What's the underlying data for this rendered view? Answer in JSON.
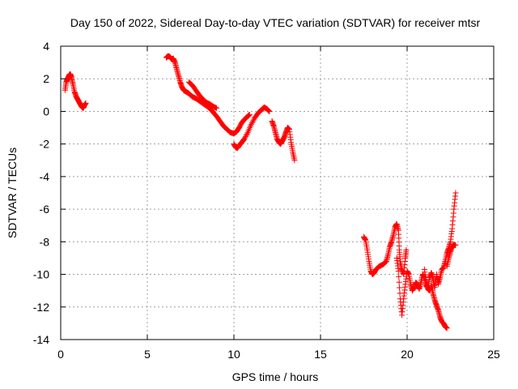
{
  "chart_data": {
    "type": "scatter",
    "title": "Day 150 of 2022, Sidereal Day-to-day VTEC variation (SDTVAR) for receiver mtsr",
    "xlabel": "GPS time / hours",
    "ylabel": "SDTVAR / TECUs",
    "xlim": [
      0,
      25
    ],
    "ylim": [
      -14,
      4
    ],
    "x_ticks": [
      0,
      5,
      10,
      15,
      20,
      25
    ],
    "y_ticks": [
      -14,
      -12,
      -10,
      -8,
      -6,
      -4,
      -2,
      0,
      2,
      4
    ],
    "grid": true,
    "marker": "+",
    "series_color": "#ff0000",
    "series": [
      {
        "name": "mtsr",
        "segments": [
          [
            [
              0.25,
              1.3
            ],
            [
              0.32,
              1.8
            ],
            [
              0.4,
              2.0
            ],
            [
              0.48,
              2.2
            ],
            [
              0.55,
              2.3
            ],
            [
              0.62,
              2.1
            ],
            [
              0.7,
              1.7
            ],
            [
              0.8,
              1.2
            ],
            [
              0.9,
              0.9
            ],
            [
              1.0,
              0.7
            ],
            [
              1.1,
              0.5
            ],
            [
              1.2,
              0.3
            ],
            [
              1.3,
              0.2
            ],
            [
              1.38,
              0.4
            ],
            [
              1.45,
              0.5
            ]
          ],
          [
            [
              6.1,
              3.3
            ],
            [
              6.2,
              3.4
            ],
            [
              6.3,
              3.35
            ],
            [
              6.4,
              3.2
            ],
            [
              6.5,
              3.25
            ],
            [
              6.6,
              3.0
            ],
            [
              6.7,
              2.6
            ],
            [
              6.8,
              2.2
            ],
            [
              6.9,
              1.8
            ],
            [
              7.0,
              1.5
            ],
            [
              7.1,
              1.3
            ],
            [
              7.25,
              1.2
            ],
            [
              7.4,
              1.1
            ],
            [
              7.6,
              0.9
            ],
            [
              7.8,
              0.8
            ],
            [
              8.0,
              0.65
            ],
            [
              8.2,
              0.5
            ],
            [
              8.4,
              0.35
            ],
            [
              8.6,
              0.2
            ],
            [
              8.8,
              -0.05
            ],
            [
              9.0,
              -0.3
            ],
            [
              9.2,
              -0.6
            ],
            [
              9.4,
              -0.9
            ],
            [
              9.6,
              -1.1
            ],
            [
              9.8,
              -1.3
            ],
            [
              10.0,
              -1.35
            ],
            [
              10.15,
              -1.25
            ],
            [
              10.3,
              -1.0
            ],
            [
              10.45,
              -0.7
            ],
            [
              10.6,
              -0.5
            ],
            [
              10.8,
              -0.3
            ],
            [
              10.9,
              -0.2
            ]
          ],
          [
            [
              7.4,
              1.8
            ],
            [
              7.6,
              1.6
            ],
            [
              7.8,
              1.3
            ],
            [
              8.0,
              1.0
            ],
            [
              8.2,
              0.75
            ],
            [
              8.4,
              0.55
            ],
            [
              8.6,
              0.45
            ],
            [
              8.8,
              0.3
            ],
            [
              9.0,
              0.2
            ]
          ],
          [
            [
              10.0,
              -2.0
            ],
            [
              10.1,
              -2.2
            ],
            [
              10.2,
              -2.25
            ],
            [
              10.3,
              -2.1
            ],
            [
              10.45,
              -1.9
            ],
            [
              10.6,
              -1.7
            ],
            [
              10.8,
              -1.3
            ],
            [
              11.0,
              -0.8
            ],
            [
              11.2,
              -0.4
            ],
            [
              11.4,
              -0.1
            ],
            [
              11.6,
              0.1
            ],
            [
              11.75,
              0.25
            ],
            [
              11.9,
              0.15
            ],
            [
              12.05,
              0.0
            ]
          ],
          [
            [
              12.2,
              -0.6
            ],
            [
              12.3,
              -0.9
            ],
            [
              12.4,
              -1.3
            ],
            [
              12.5,
              -1.7
            ],
            [
              12.6,
              -1.9
            ],
            [
              12.7,
              -2.0
            ],
            [
              12.8,
              -1.8
            ],
            [
              12.9,
              -1.6
            ],
            [
              13.0,
              -1.3
            ],
            [
              13.1,
              -1.0
            ],
            [
              13.2,
              -1.1
            ],
            [
              13.3,
              -1.9
            ],
            [
              13.4,
              -2.5
            ],
            [
              13.5,
              -3.0
            ]
          ],
          [
            [
              17.5,
              -7.7
            ],
            [
              17.6,
              -7.9
            ],
            [
              17.7,
              -8.5
            ],
            [
              17.8,
              -9.2
            ],
            [
              17.9,
              -9.8
            ],
            [
              18.0,
              -10.0
            ],
            [
              18.1,
              -9.9
            ],
            [
              18.2,
              -9.7
            ],
            [
              18.4,
              -9.5
            ],
            [
              18.6,
              -9.4
            ],
            [
              18.8,
              -9.2
            ],
            [
              18.9,
              -8.8
            ],
            [
              19.0,
              -8.3
            ],
            [
              19.1,
              -8.0
            ],
            [
              19.2,
              -7.6
            ],
            [
              19.3,
              -7.1
            ],
            [
              19.4,
              -6.9
            ],
            [
              19.5,
              -7.3
            ],
            [
              19.55,
              -8.5
            ],
            [
              19.6,
              -9.2
            ],
            [
              19.7,
              -9.7
            ],
            [
              19.8,
              -10.0
            ],
            [
              19.9,
              -9.0
            ],
            [
              19.95,
              -8.5
            ]
          ],
          [
            [
              19.4,
              -9.0
            ],
            [
              19.5,
              -9.8
            ],
            [
              19.6,
              -11.5
            ],
            [
              19.7,
              -12.5
            ],
            [
              19.8,
              -11.5
            ],
            [
              19.9,
              -10.6
            ],
            [
              20.0,
              -9.8
            ],
            [
              20.1,
              -10.0
            ],
            [
              20.2,
              -10.6
            ],
            [
              20.3,
              -11.0
            ],
            [
              20.4,
              -10.8
            ],
            [
              20.5,
              -10.5
            ],
            [
              20.6,
              -10.6
            ],
            [
              20.7,
              -10.9
            ],
            [
              20.8,
              -10.5
            ],
            [
              20.9,
              -10.0
            ],
            [
              21.0,
              -10.2
            ],
            [
              21.1,
              -10.7
            ],
            [
              21.2,
              -10.8
            ],
            [
              21.3,
              -10.2
            ],
            [
              21.4,
              -9.9
            ],
            [
              21.5,
              -10.3
            ],
            [
              21.6,
              -10.8
            ],
            [
              21.7,
              -10.0
            ],
            [
              21.8,
              -10.6
            ],
            [
              21.9,
              -10.2
            ],
            [
              22.0,
              -9.7
            ],
            [
              22.1,
              -9.6
            ],
            [
              22.2,
              -9.2
            ],
            [
              22.3,
              -8.7
            ],
            [
              22.4,
              -8.4
            ],
            [
              22.5,
              -8.0
            ],
            [
              22.6,
              -7.2
            ],
            [
              22.7,
              -6.0
            ],
            [
              22.8,
              -5.0
            ]
          ],
          [
            [
              21.0,
              -9.7
            ],
            [
              21.1,
              -10.5
            ],
            [
              21.2,
              -10.9
            ],
            [
              21.3,
              -11.0
            ],
            [
              21.4,
              -10.7
            ],
            [
              21.5,
              -11.2
            ],
            [
              21.6,
              -11.6
            ],
            [
              21.7,
              -11.9
            ],
            [
              21.8,
              -12.2
            ],
            [
              21.9,
              -12.6
            ],
            [
              22.0,
              -12.9
            ],
            [
              22.1,
              -13.0
            ],
            [
              22.2,
              -13.2
            ],
            [
              22.3,
              -13.3
            ]
          ],
          [
            [
              22.3,
              -9.5
            ],
            [
              22.4,
              -9.0
            ],
            [
              22.5,
              -8.6
            ],
            [
              22.6,
              -8.3
            ],
            [
              22.7,
              -8.2
            ],
            [
              22.8,
              -8.2
            ]
          ]
        ]
      }
    ]
  }
}
